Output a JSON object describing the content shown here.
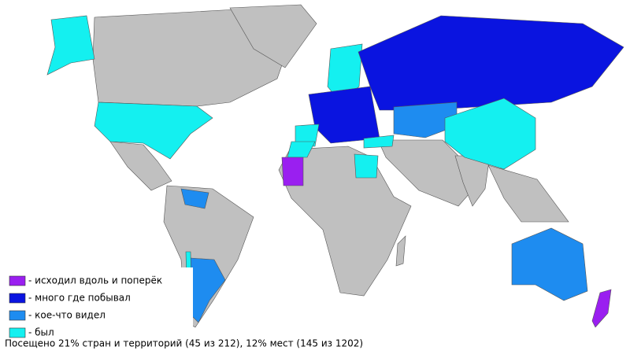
{
  "legend": [
    {
      "label": "- исходил вдоль и поперёк",
      "color": "#9a1ff0"
    },
    {
      "label": "- много где побывал",
      "color": "#0a14e0"
    },
    {
      "label": "- кое-что видел",
      "color": "#1e8cf0"
    },
    {
      "label": "- был",
      "color": "#14f0f0"
    }
  ],
  "caption": "Посещено 21% стран и территорий (45 из 212), 12% мест (145 из 1202)"
}
